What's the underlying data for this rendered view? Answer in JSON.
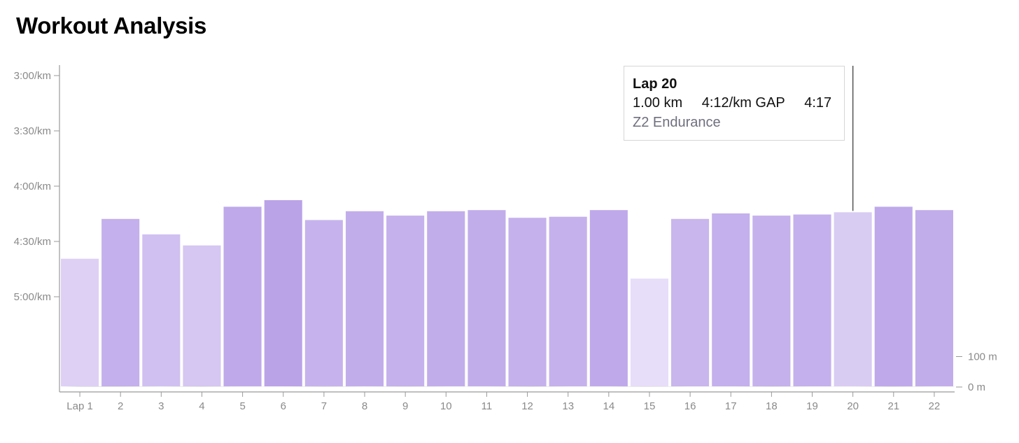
{
  "title": "Workout Analysis",
  "chart_data": {
    "type": "bar",
    "categories": [
      "Lap 1",
      "2",
      "3",
      "4",
      "5",
      "6",
      "7",
      "8",
      "9",
      "10",
      "11",
      "12",
      "13",
      "14",
      "15",
      "16",
      "17",
      "18",
      "19",
      "20",
      "21",
      "22"
    ],
    "values": [
      4.65,
      4.29,
      4.43,
      4.53,
      4.18,
      4.12,
      4.3,
      4.22,
      4.26,
      4.22,
      4.21,
      4.28,
      4.27,
      4.21,
      4.83,
      4.29,
      4.24,
      4.26,
      4.25,
      4.23,
      4.18,
      4.21
    ],
    "value_unit": "min/km (pace)",
    "y_axis_left": {
      "ticks": [
        "3:00/km",
        "3:30/km",
        "4:00/km",
        "4:30/km",
        "5:00/km"
      ],
      "tick_values": [
        3.0,
        3.5,
        4.0,
        4.5,
        5.0
      ],
      "scale": "pace, faster at top"
    },
    "y_axis_right": {
      "ticks": [
        "100 m",
        "0 m"
      ],
      "tick_values": [
        100,
        0
      ]
    },
    "elevation_profile": [
      2,
      2,
      1,
      2,
      1,
      1,
      2,
      1,
      2,
      1,
      1,
      2,
      1,
      1,
      2,
      1,
      1,
      2,
      1,
      1,
      2,
      1
    ],
    "bar_colors": [
      "#ddd0f4",
      "#c4b0ec",
      "#d0c0f1",
      "#d5c6f2",
      "#bfa9ea",
      "#bba3e8",
      "#c6b3ed",
      "#c2adeb",
      "#c5b1ec",
      "#c2adeb",
      "#c2adeb",
      "#c5b1ec",
      "#c5b1ec",
      "#bfa9ea",
      "#e7defa",
      "#c8b6ed",
      "#c4b0ec",
      "#c5b1ec",
      "#c4b0ec",
      "#d9ccf3",
      "#bfa9ea",
      "#c2adeb"
    ],
    "highlighted_category": "20",
    "tooltip": {
      "title": "Lap 20",
      "distance": "1.00 km",
      "pace": "4:12/km GAP",
      "time": "4:17",
      "zone": "Z2 Endurance"
    },
    "colors": {
      "axis": "#9a9a9a",
      "elevation_fill": "#dcdcdc",
      "cursor_line": "#555555"
    }
  }
}
